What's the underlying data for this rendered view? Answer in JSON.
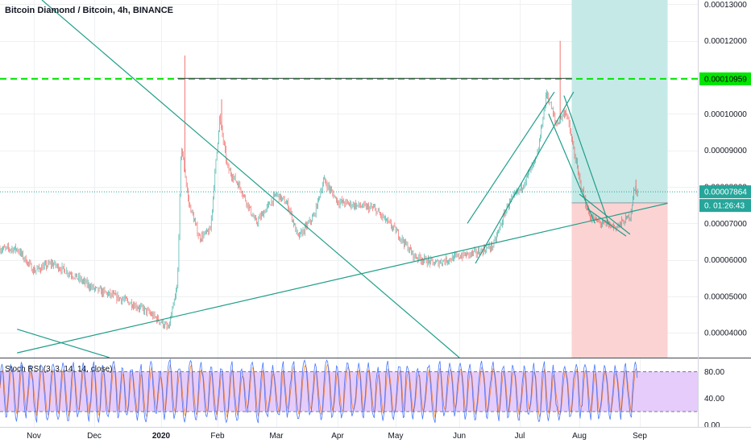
{
  "header": {
    "title": "Bitcoin Diamond / Bitcoin, 4h, BINANCE"
  },
  "indicator": {
    "label": "Stoch RSI (3, 3, 14, 14, close)"
  },
  "colors": {
    "up": "#26a69a",
    "down": "#ef5350",
    "trendline": "#1f9e89",
    "resistance": "#00e600",
    "profit_zone": "#c5e9e6",
    "loss_zone": "#fbd3d3",
    "rsi_band": "#e5ccfb",
    "rsi_line": "#2962ff",
    "rsi_signal": "#ff6d00",
    "current_badge": "#26a69a",
    "grid": "#eef0f3"
  },
  "chart_data": [
    {
      "type": "candlestick",
      "title": "Bitcoin Diamond / Bitcoin, 4h, BINANCE",
      "x_ticks": [
        "Nov",
        "Dec",
        "2020",
        "Feb",
        "Mar",
        "Apr",
        "May",
        "Jun",
        "Jul",
        "Aug",
        "Sep"
      ],
      "y_ticks": [
        "0.00004000",
        "0.00005000",
        "0.00006000",
        "0.00007000",
        "0.00008000",
        "0.00009000",
        "0.00010000",
        "0.00011000",
        "0.00012000",
        "0.00013000"
      ],
      "ylim": [
        3.32e-05,
        0.0001312
      ],
      "grid": true,
      "price_path": [
        [
          "Oct 25",
          6.3e-05
        ],
        [
          "Nov 1",
          5.7e-05
        ],
        [
          "Nov 10",
          5.9e-05
        ],
        [
          "Nov 20",
          5.6e-05
        ],
        [
          "Dec 1",
          5.2e-05
        ],
        [
          "Dec 15",
          4.9e-05
        ],
        [
          "Dec 25",
          4.6e-05
        ],
        [
          "Jan 1",
          4.3e-05
        ],
        [
          "Jan 5",
          4.1e-05
        ],
        [
          "Jan 8",
          4.8e-05
        ],
        [
          "Jan 10",
          5.3e-05
        ],
        [
          "Jan 12",
          9.2e-05
        ],
        [
          "Jan 16",
          7.6e-05
        ],
        [
          "Jan 22",
          6.6e-05
        ],
        [
          "Jan 28",
          6.8e-05
        ],
        [
          "Jan 30",
          8e-05
        ],
        [
          "Feb 2",
          9.9e-05
        ],
        [
          "Feb 6",
          8.5e-05
        ],
        [
          "Feb 12",
          8e-05
        ],
        [
          "Feb 20",
          7e-05
        ],
        [
          "Mar 1",
          7.8e-05
        ],
        [
          "Mar 7",
          7.5e-05
        ],
        [
          "Mar 12",
          6.6e-05
        ],
        [
          "Mar 20",
          7.2e-05
        ],
        [
          "Mar 25",
          8.2e-05
        ],
        [
          "Apr 1",
          7.6e-05
        ],
        [
          "Apr 10",
          7.5e-05
        ],
        [
          "Apr 20",
          7.4e-05
        ],
        [
          "May 1",
          6.8e-05
        ],
        [
          "May 10",
          6.1e-05
        ],
        [
          "May 20",
          5.9e-05
        ],
        [
          "Jun 1",
          6.1e-05
        ],
        [
          "Jun 10",
          6.2e-05
        ],
        [
          "Jun 18",
          6.4e-05
        ],
        [
          "Jun 25",
          7.5e-05
        ],
        [
          "Jul 2",
          8e-05
        ],
        [
          "Jul 10",
          8.8e-05
        ],
        [
          "Jul 15",
          0.000106
        ],
        [
          "Jul 20",
          9.7e-05
        ],
        [
          "Jul 25",
          0.000101
        ],
        [
          "Aug 1",
          8.2e-05
        ],
        [
          "Aug 6",
          7.2e-05
        ],
        [
          "Aug 12",
          7e-05
        ],
        [
          "Aug 20",
          6.9e-05
        ],
        [
          "Aug 27",
          7.2e-05
        ],
        [
          "Aug 29",
          7.9e-05
        ],
        [
          "Aug 31",
          7.86e-05
        ]
      ],
      "price_labels": {
        "resistance": "0.00010959",
        "current": "0.00007864",
        "countdown_prefix": "0.",
        "countdown": "01:26:43"
      },
      "levels": {
        "resistance": 0.00010959,
        "current": 7.864e-05,
        "entry": 7.56e-05
      },
      "trade_zones": {
        "from": "Jul 28",
        "to": "Sep 15",
        "profit": [
          7.56e-05,
          0.0001312
        ],
        "loss": [
          3.32e-05,
          7.56e-05
        ]
      },
      "trendlines": [
        [
          [
            "Oct 25",
            3.45e-05
          ],
          [
            "Sep 15",
            7.55e-05
          ]
        ],
        [
          [
            "Nov 5",
            0.0001312
          ],
          [
            "Jun 1",
            3.32e-05
          ]
        ],
        [
          [
            "Oct 25",
            4.1e-05
          ],
          [
            "Dec 8",
            3.32e-05
          ]
        ],
        [
          [
            "Jun 9",
            5.9e-05
          ],
          [
            "Jul 29",
            0.000106
          ]
        ],
        [
          [
            "Jun 5",
            7e-05
          ],
          [
            "Jul 19",
            0.000106
          ]
        ],
        [
          [
            "Jul 16",
            0.0001
          ],
          [
            "Aug 9",
            7e-05
          ]
        ],
        [
          [
            "Jul 24",
            0.000105
          ],
          [
            "Aug 16",
            7e-05
          ]
        ],
        [
          [
            "Aug 1",
            7.8e-05
          ],
          [
            "Aug 27",
            6.7e-05
          ]
        ],
        [
          [
            "Aug 5",
            7.4e-05
          ],
          [
            "Aug 25",
            6.65e-05
          ]
        ]
      ]
    },
    {
      "type": "line",
      "title": "Stoch RSI (3, 3, 14, 14, close)",
      "y_ticks": [
        "80.00",
        "40.00",
        "0.00"
      ],
      "ylim": [
        -3,
        100
      ],
      "band": [
        20,
        80
      ],
      "series": [
        {
          "values": "oscillating 0–100"
        }
      ]
    }
  ]
}
